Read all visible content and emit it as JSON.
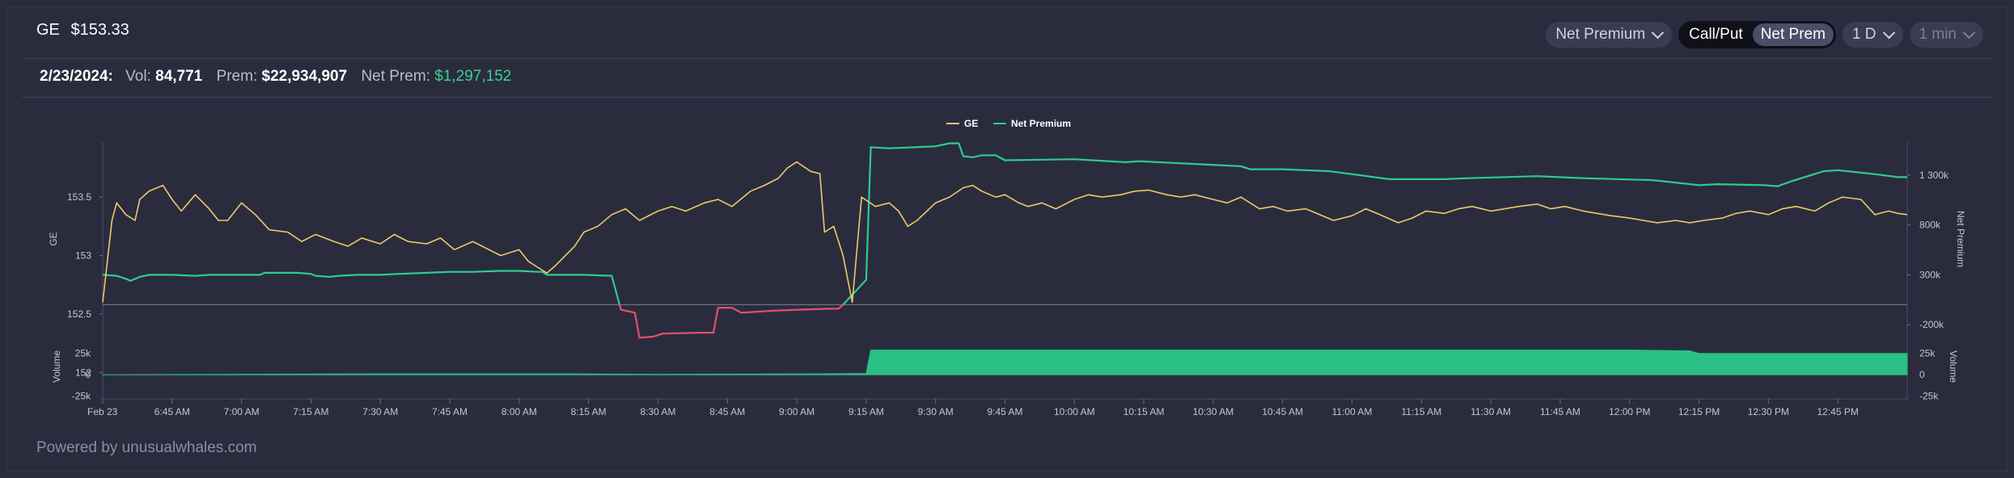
{
  "header": {
    "ticker": "GE",
    "price": "$153.33",
    "controls": {
      "metric_select": "Net Premium",
      "toggle": [
        "Call/Put",
        "Net Prem"
      ],
      "toggle_active": "Net Prem",
      "range": "1 D",
      "interval": "1 min"
    }
  },
  "stats": {
    "date": "2/23/2024:",
    "vol_label": "Vol:",
    "vol_value": "84,771",
    "prem_label": "Prem:",
    "prem_value": "$22,934,907",
    "net_label": "Net Prem:",
    "net_value": "$1,297,152"
  },
  "footer": "Powered by unusualwhales.com",
  "colors": {
    "price": "#f0c86a",
    "net_pos": "#2ecc8e",
    "net_neg": "#e5506a",
    "volume": "#2abf85"
  },
  "chart_data": {
    "type": "line",
    "legend": [
      "GE",
      "Net Premium"
    ],
    "legend_position": "top-center",
    "x_tick_labels": [
      "Feb 23",
      "6:45 AM",
      "7:00 AM",
      "7:15 AM",
      "7:30 AM",
      "7:45 AM",
      "8:00 AM",
      "8:15 AM",
      "8:30 AM",
      "8:45 AM",
      "9:00 AM",
      "9:15 AM",
      "9:30 AM",
      "9:45 AM",
      "10:00 AM",
      "10:15 AM",
      "10:30 AM",
      "10:45 AM",
      "11:00 AM",
      "11:15 AM",
      "11:30 AM",
      "11:45 AM",
      "12:00 PM",
      "12:15 PM",
      "12:30 PM",
      "12:45 PM"
    ],
    "x_tick_minutes": [
      390,
      405,
      420,
      435,
      450,
      465,
      480,
      495,
      510,
      525,
      540,
      555,
      570,
      585,
      600,
      615,
      630,
      645,
      660,
      675,
      690,
      705,
      720,
      735,
      750,
      765
    ],
    "xlim_minutes": [
      390,
      780
    ],
    "left_axis": {
      "label": "GE",
      "ticks": [
        "153.5",
        "153",
        "152.5",
        "152"
      ],
      "tick_values": [
        153.5,
        153,
        152.5,
        152
      ],
      "ylim": [
        151.94,
        153.97
      ]
    },
    "right_axis": {
      "label": "Net Premium",
      "ticks": [
        "1 300k",
        "800k",
        "300k",
        "-200k"
      ],
      "tick_values": [
        1300,
        800,
        300,
        -200
      ],
      "unit": "k",
      "ylim": [
        -750,
        1632
      ]
    },
    "volume_axis": {
      "label": "Volume",
      "ticks": [
        "25k",
        "0",
        "-25k"
      ],
      "tick_values": [
        25,
        0,
        -25
      ],
      "unit": "k",
      "ylim": [
        -34,
        37
      ]
    },
    "series": [
      {
        "name": "GE",
        "axis": "left",
        "points": [
          [
            390,
            152.6
          ],
          [
            391,
            152.95
          ],
          [
            392,
            153.3
          ],
          [
            393,
            153.45
          ],
          [
            395,
            153.35
          ],
          [
            397,
            153.3
          ],
          [
            398,
            153.48
          ],
          [
            400,
            153.55
          ],
          [
            403,
            153.6
          ],
          [
            405,
            153.48
          ],
          [
            407,
            153.38
          ],
          [
            410,
            153.52
          ],
          [
            413,
            153.4
          ],
          [
            415,
            153.3
          ],
          [
            417,
            153.3
          ],
          [
            420,
            153.45
          ],
          [
            423,
            153.35
          ],
          [
            426,
            153.22
          ],
          [
            430,
            153.2
          ],
          [
            433,
            153.12
          ],
          [
            436,
            153.18
          ],
          [
            440,
            153.12
          ],
          [
            443,
            153.08
          ],
          [
            446,
            153.15
          ],
          [
            450,
            153.1
          ],
          [
            453,
            153.18
          ],
          [
            456,
            153.12
          ],
          [
            460,
            153.1
          ],
          [
            463,
            153.15
          ],
          [
            466,
            153.05
          ],
          [
            470,
            153.12
          ],
          [
            473,
            153.06
          ],
          [
            476,
            153.0
          ],
          [
            480,
            153.05
          ],
          [
            482,
            152.95
          ],
          [
            484,
            152.9
          ],
          [
            486,
            152.85
          ],
          [
            488,
            152.92
          ],
          [
            490,
            153.0
          ],
          [
            492,
            153.08
          ],
          [
            494,
            153.2
          ],
          [
            497,
            153.25
          ],
          [
            500,
            153.35
          ],
          [
            503,
            153.4
          ],
          [
            506,
            153.3
          ],
          [
            510,
            153.38
          ],
          [
            513,
            153.42
          ],
          [
            516,
            153.38
          ],
          [
            520,
            153.45
          ],
          [
            523,
            153.48
          ],
          [
            526,
            153.42
          ],
          [
            530,
            153.55
          ],
          [
            533,
            153.6
          ],
          [
            536,
            153.66
          ],
          [
            538,
            153.75
          ],
          [
            540,
            153.8
          ],
          [
            543,
            153.72
          ],
          [
            545,
            153.7
          ],
          [
            546,
            153.2
          ],
          [
            548,
            153.25
          ],
          [
            550,
            153.0
          ],
          [
            552,
            152.6
          ],
          [
            554,
            153.5
          ],
          [
            557,
            153.42
          ],
          [
            560,
            153.45
          ],
          [
            562,
            153.38
          ],
          [
            564,
            153.25
          ],
          [
            566,
            153.3
          ],
          [
            570,
            153.45
          ],
          [
            573,
            153.5
          ],
          [
            576,
            153.58
          ],
          [
            578,
            153.6
          ],
          [
            580,
            153.55
          ],
          [
            583,
            153.5
          ],
          [
            585,
            153.52
          ],
          [
            588,
            153.45
          ],
          [
            590,
            153.42
          ],
          [
            593,
            153.45
          ],
          [
            596,
            153.4
          ],
          [
            600,
            153.48
          ],
          [
            603,
            153.52
          ],
          [
            606,
            153.5
          ],
          [
            610,
            153.52
          ],
          [
            613,
            153.55
          ],
          [
            616,
            153.56
          ],
          [
            620,
            153.52
          ],
          [
            623,
            153.5
          ],
          [
            626,
            153.52
          ],
          [
            630,
            153.48
          ],
          [
            633,
            153.45
          ],
          [
            636,
            153.5
          ],
          [
            640,
            153.4
          ],
          [
            643,
            153.42
          ],
          [
            646,
            153.38
          ],
          [
            650,
            153.4
          ],
          [
            653,
            153.35
          ],
          [
            656,
            153.3
          ],
          [
            660,
            153.34
          ],
          [
            663,
            153.4
          ],
          [
            666,
            153.35
          ],
          [
            670,
            153.28
          ],
          [
            673,
            153.32
          ],
          [
            676,
            153.38
          ],
          [
            680,
            153.36
          ],
          [
            683,
            153.4
          ],
          [
            686,
            153.42
          ],
          [
            690,
            153.38
          ],
          [
            693,
            153.4
          ],
          [
            696,
            153.42
          ],
          [
            700,
            153.44
          ],
          [
            703,
            153.4
          ],
          [
            706,
            153.42
          ],
          [
            710,
            153.38
          ],
          [
            713,
            153.36
          ],
          [
            716,
            153.34
          ],
          [
            720,
            153.32
          ],
          [
            723,
            153.3
          ],
          [
            726,
            153.28
          ],
          [
            730,
            153.3
          ],
          [
            733,
            153.28
          ],
          [
            736,
            153.3
          ],
          [
            740,
            153.32
          ],
          [
            743,
            153.36
          ],
          [
            746,
            153.38
          ],
          [
            750,
            153.35
          ],
          [
            753,
            153.4
          ],
          [
            756,
            153.42
          ],
          [
            760,
            153.38
          ],
          [
            763,
            153.45
          ],
          [
            766,
            153.5
          ],
          [
            770,
            153.48
          ],
          [
            773,
            153.35
          ],
          [
            776,
            153.38
          ],
          [
            778,
            153.36
          ],
          [
            780,
            153.35
          ]
        ]
      },
      {
        "name": "Net Premium",
        "axis": "right",
        "unit": "k",
        "points": [
          [
            390,
            300
          ],
          [
            393,
            290
          ],
          [
            395,
            260
          ],
          [
            396,
            240
          ],
          [
            398,
            280
          ],
          [
            400,
            300
          ],
          [
            405,
            300
          ],
          [
            410,
            290
          ],
          [
            413,
            300
          ],
          [
            420,
            300
          ],
          [
            424,
            300
          ],
          [
            425,
            320
          ],
          [
            432,
            320
          ],
          [
            435,
            310
          ],
          [
            436,
            290
          ],
          [
            439,
            280
          ],
          [
            441,
            290
          ],
          [
            445,
            300
          ],
          [
            450,
            300
          ],
          [
            454,
            310
          ],
          [
            460,
            320
          ],
          [
            465,
            330
          ],
          [
            470,
            330
          ],
          [
            476,
            340
          ],
          [
            480,
            340
          ],
          [
            484,
            330
          ],
          [
            485,
            330
          ],
          [
            486,
            300
          ],
          [
            494,
            300
          ],
          [
            500,
            290
          ],
          [
            502,
            -50
          ],
          [
            505,
            -80
          ],
          [
            506,
            -330
          ],
          [
            509,
            -320
          ],
          [
            511,
            -290
          ],
          [
            520,
            -280
          ],
          [
            522,
            -280
          ],
          [
            523,
            -30
          ],
          [
            526,
            -30
          ],
          [
            528,
            -80
          ],
          [
            535,
            -60
          ],
          [
            540,
            -50
          ],
          [
            547,
            -40
          ],
          [
            549,
            -40
          ],
          [
            550,
            0
          ],
          [
            555,
            250
          ],
          [
            556,
            1580
          ],
          [
            560,
            1570
          ],
          [
            570,
            1590
          ],
          [
            573,
            1620
          ],
          [
            575,
            1620
          ],
          [
            576,
            1490
          ],
          [
            578,
            1480
          ],
          [
            580,
            1500
          ],
          [
            583,
            1500
          ],
          [
            585,
            1450
          ],
          [
            600,
            1460
          ],
          [
            611,
            1430
          ],
          [
            614,
            1440
          ],
          [
            627,
            1410
          ],
          [
            636,
            1390
          ],
          [
            638,
            1360
          ],
          [
            645,
            1360
          ],
          [
            650,
            1350
          ],
          [
            655,
            1340
          ],
          [
            660,
            1310
          ],
          [
            668,
            1260
          ],
          [
            680,
            1260
          ],
          [
            685,
            1270
          ],
          [
            700,
            1290
          ],
          [
            710,
            1270
          ],
          [
            725,
            1250
          ],
          [
            735,
            1200
          ],
          [
            739,
            1210
          ],
          [
            749,
            1200
          ],
          [
            752,
            1190
          ],
          [
            755,
            1240
          ],
          [
            762,
            1340
          ],
          [
            765,
            1350
          ],
          [
            773,
            1310
          ],
          [
            778,
            1280
          ],
          [
            780,
            1280
          ]
        ]
      },
      {
        "name": "Volume",
        "axis": "volume",
        "unit": "k",
        "points": [
          [
            390,
            0
          ],
          [
            450,
            1
          ],
          [
            490,
            1
          ],
          [
            510,
            0.5
          ],
          [
            545,
            1
          ],
          [
            555,
            1.5
          ],
          [
            556,
            29
          ],
          [
            570,
            29
          ],
          [
            580,
            29
          ],
          [
            600,
            29
          ],
          [
            620,
            29
          ],
          [
            640,
            29
          ],
          [
            660,
            29
          ],
          [
            680,
            29
          ],
          [
            700,
            29
          ],
          [
            720,
            29
          ],
          [
            733,
            28
          ],
          [
            735,
            25
          ],
          [
            750,
            25
          ],
          [
            765,
            25
          ],
          [
            780,
            25
          ]
        ]
      }
    ]
  }
}
